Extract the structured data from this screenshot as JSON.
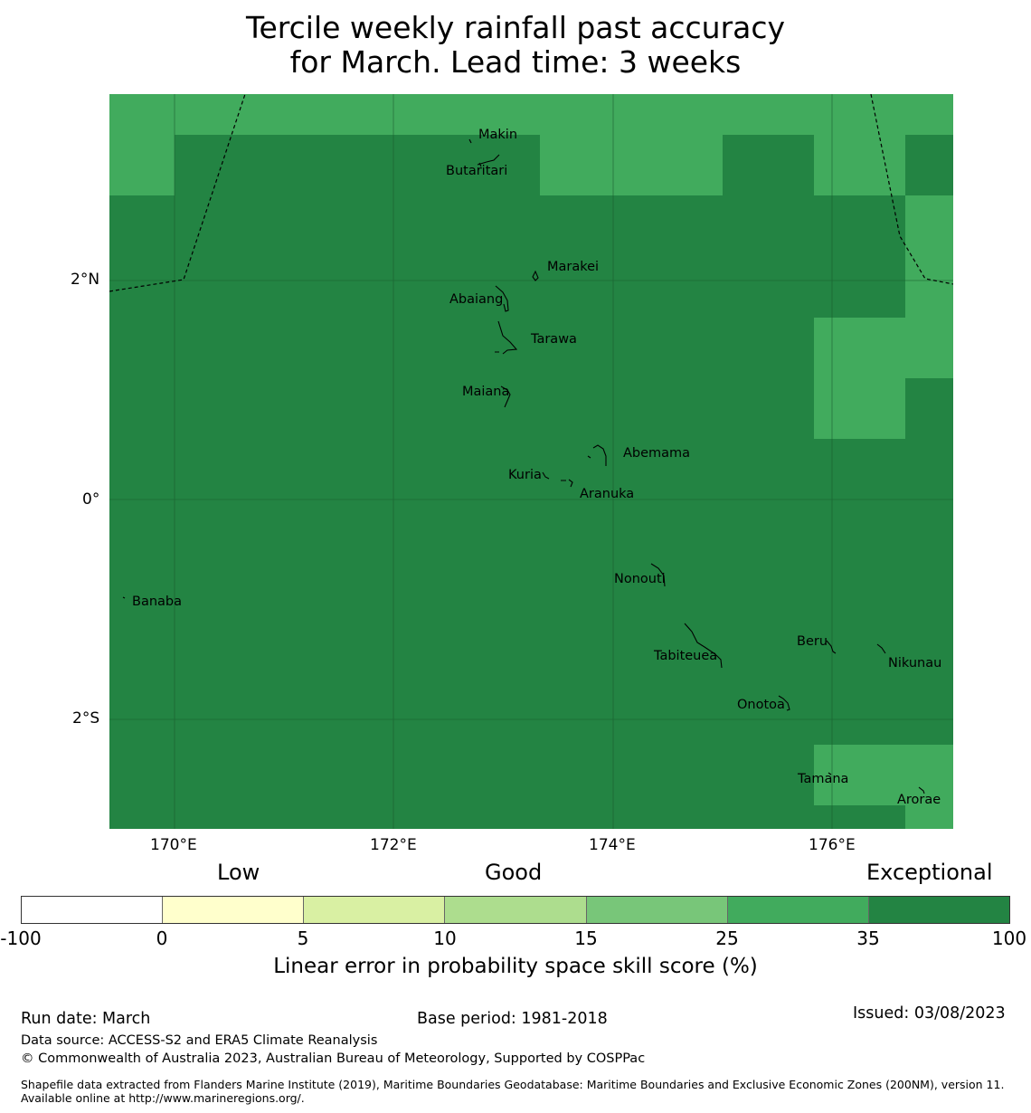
{
  "title": {
    "line1": "Tercile weekly rainfall past accuracy",
    "line2": "for March. Lead time: 3 weeks"
  },
  "map": {
    "colors": {
      "light_green": "#41ab5d",
      "dark_green": "#238443",
      "boundary": "#000000"
    },
    "lat_labels": [
      "2°N",
      "0°",
      "2°S"
    ],
    "lon_labels": [
      "170°E",
      "172°E",
      "174°E",
      "176°E"
    ],
    "islands": [
      {
        "name": "Makin"
      },
      {
        "name": "Butaritari"
      },
      {
        "name": "Marakei"
      },
      {
        "name": "Abaiang"
      },
      {
        "name": "Tarawa"
      },
      {
        "name": "Maiana"
      },
      {
        "name": "Abemama"
      },
      {
        "name": "Kuria"
      },
      {
        "name": "Aranuka"
      },
      {
        "name": "Nonouti"
      },
      {
        "name": "Banaba"
      },
      {
        "name": "Tabiteuea"
      },
      {
        "name": "Beru"
      },
      {
        "name": "Nikunau"
      },
      {
        "name": "Onotoa"
      },
      {
        "name": "Tamana"
      },
      {
        "name": "Arorae"
      }
    ]
  },
  "colorbar": {
    "categories": [
      "Low",
      "Good",
      "Exceptional"
    ],
    "ticks": [
      "-100",
      "0",
      "5",
      "10",
      "15",
      "25",
      "35",
      "100"
    ],
    "colors": [
      "#ffffff",
      "#ffffcc",
      "#d9f0a3",
      "#addd8e",
      "#78c679",
      "#41ab5d",
      "#238443"
    ],
    "label": "Linear error in probability space skill score (%)"
  },
  "footer": {
    "run_date": "Run date: March",
    "base_period": "Base period: 1981-2018",
    "issued": "Issued: 03/08/2023",
    "data_source": "Data source: ACCESS-S2 and ERA5 Climate Reanalysis",
    "copyright": "© Commonwealth of Australia 2023, Australian Bureau of Meteorology, Supported by COSPPac",
    "shapefile": "Shapefile data extracted from Flanders Marine Institute (2019), Maritime Boundaries Geodatabase: Maritime Boundaries and Exclusive Economic Zones (200NM), version 11. Available online at http://www.marineregions.org/."
  }
}
